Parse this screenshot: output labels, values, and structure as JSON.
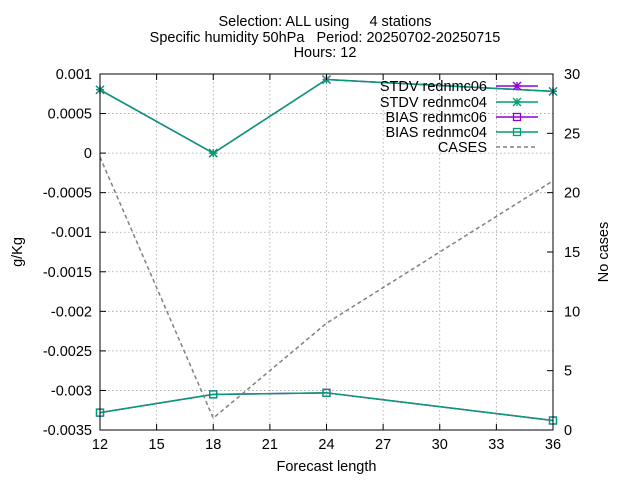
{
  "chart_data": {
    "type": "line",
    "title": [
      "Selection: ALL using     4 stations",
      "Specific humidity 50hPa   Period: 20250702-20250715",
      "Hours: 12"
    ],
    "xlabel": "Forecast length",
    "ylabel": "g/Kg",
    "y2label": "No cases",
    "xlim": [
      12,
      36
    ],
    "ylim": [
      -0.0035,
      0.001
    ],
    "y2lim": [
      0,
      30
    ],
    "xticks": [
      "12",
      "15",
      "18",
      "21",
      "24",
      "27",
      "30",
      "33",
      "36"
    ],
    "yticks": [
      "0.001",
      "0.0005",
      "0",
      "-0.0005",
      "-0.001",
      "-0.0015",
      "-0.002",
      "-0.0025",
      "-0.003",
      "-0.0035"
    ],
    "y2ticks": [
      "30",
      "25",
      "20",
      "15",
      "10",
      "5",
      "0"
    ],
    "grid": true,
    "legend_position": "top-right",
    "series": [
      {
        "name": "STDV rednmc06",
        "axis": "y1",
        "color": "#9400d3",
        "marker": "star",
        "x": [
          12,
          18,
          24,
          36
        ],
        "values": [
          0.0008,
          0.0,
          0.00093,
          0.00078
        ]
      },
      {
        "name": "STDV rednmc04",
        "axis": "y1",
        "color": "#009e73",
        "marker": "star",
        "x": [
          12,
          18,
          24,
          36
        ],
        "values": [
          0.0008,
          0.0,
          0.00093,
          0.00078
        ]
      },
      {
        "name": "BIAS rednmc06",
        "axis": "y1",
        "color": "#9400d3",
        "marker": "square",
        "x": [
          12,
          18,
          24,
          36
        ],
        "values": [
          -0.00328,
          -0.00305,
          -0.00303,
          -0.00338
        ]
      },
      {
        "name": "BIAS rednmc04",
        "axis": "y1",
        "color": "#009e73",
        "marker": "square",
        "x": [
          12,
          18,
          24,
          36
        ],
        "values": [
          -0.00328,
          -0.00305,
          -0.00303,
          -0.00338
        ]
      },
      {
        "name": "CASES",
        "axis": "y2",
        "color": "#808080",
        "marker": "none",
        "dashed": true,
        "x": [
          12,
          18,
          24,
          36
        ],
        "values": [
          23,
          1,
          9,
          21
        ]
      }
    ]
  }
}
